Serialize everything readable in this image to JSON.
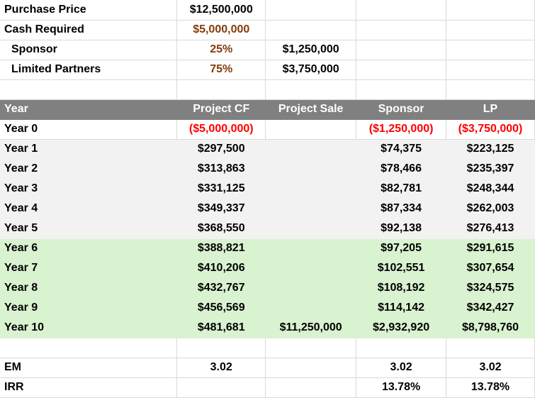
{
  "summary": {
    "purchase_price_label": "Purchase Price",
    "purchase_price_value": "$12,500,000",
    "cash_required_label": "Cash Required",
    "cash_required_value": "$5,000,000",
    "sponsor_label": "Sponsor",
    "sponsor_pct": "25%",
    "sponsor_amount": "$1,250,000",
    "lp_label": "Limited Partners",
    "lp_pct": "75%",
    "lp_amount": "$3,750,000"
  },
  "table": {
    "headers": [
      "Year",
      "Project CF",
      "Project Sale",
      "Sponsor",
      "LP"
    ],
    "rows": [
      {
        "year": "Year 0",
        "cf": "($5,000,000)",
        "sale": "",
        "sponsor": "($1,250,000)",
        "lp": "($3,750,000)"
      },
      {
        "year": "Year 1",
        "cf": "$297,500",
        "sale": "",
        "sponsor": "$74,375",
        "lp": "$223,125"
      },
      {
        "year": "Year 2",
        "cf": "$313,863",
        "sale": "",
        "sponsor": "$78,466",
        "lp": "$235,397"
      },
      {
        "year": "Year 3",
        "cf": "$331,125",
        "sale": "",
        "sponsor": "$82,781",
        "lp": "$248,344"
      },
      {
        "year": "Year 4",
        "cf": "$349,337",
        "sale": "",
        "sponsor": "$87,334",
        "lp": "$262,003"
      },
      {
        "year": "Year 5",
        "cf": "$368,550",
        "sale": "",
        "sponsor": "$92,138",
        "lp": "$276,413"
      },
      {
        "year": "Year 6",
        "cf": "$388,821",
        "sale": "",
        "sponsor": "$97,205",
        "lp": "$291,615"
      },
      {
        "year": "Year 7",
        "cf": "$410,206",
        "sale": "",
        "sponsor": "$102,551",
        "lp": "$307,654"
      },
      {
        "year": "Year 8",
        "cf": "$432,767",
        "sale": "",
        "sponsor": "$108,192",
        "lp": "$324,575"
      },
      {
        "year": "Year 9",
        "cf": "$456,569",
        "sale": "",
        "sponsor": "$114,142",
        "lp": "$342,427"
      },
      {
        "year": "Year 10",
        "cf": "$481,681",
        "sale": "$11,250,000",
        "sponsor": "$2,932,920",
        "lp": "$8,798,760"
      }
    ]
  },
  "metrics": {
    "em_label": "EM",
    "em_project": "3.02",
    "em_sponsor": "3.02",
    "em_lp": "3.02",
    "irr_label": "IRR",
    "irr_sponsor": "13.78%",
    "irr_lp": "13.78%"
  },
  "colors": {
    "header_bg": "#808080",
    "gray_band": "#f2f2f2",
    "green_band": "#d9f2d0",
    "negative": "#ff0000",
    "accent_brown": "#833c0b"
  }
}
